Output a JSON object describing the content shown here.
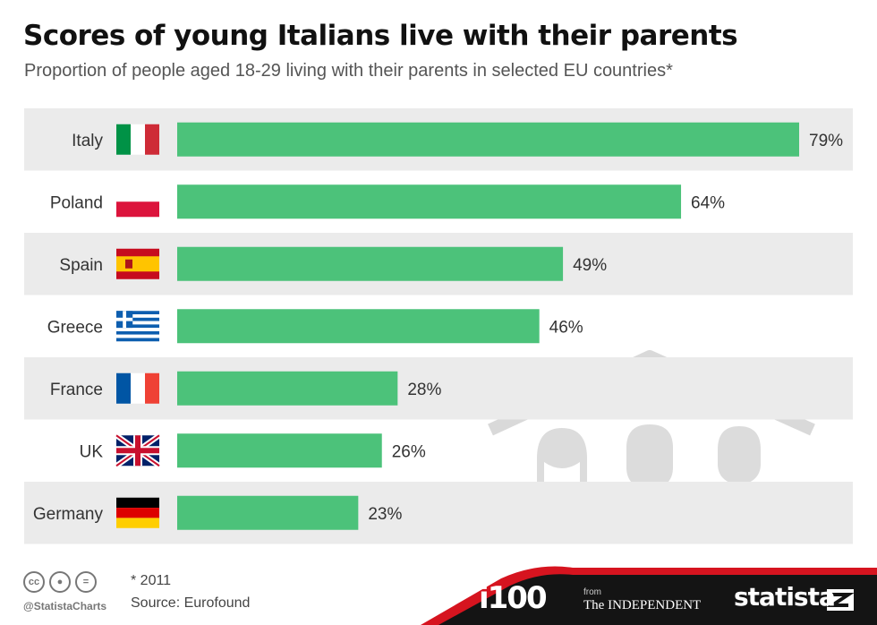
{
  "header": {
    "title": "Scores of young Italians live with their parents",
    "subtitle": "Proportion of people aged 18-29 living with their parents in selected EU countries*"
  },
  "chart_data": {
    "type": "bar",
    "orientation": "horizontal",
    "title": "Scores of young Italians live with their parents",
    "subtitle": "Proportion of people aged 18-29 living with their parents in selected EU countries*",
    "categories": [
      "Italy",
      "Poland",
      "Spain",
      "Greece",
      "France",
      "UK",
      "Germany"
    ],
    "values": [
      79,
      64,
      49,
      46,
      28,
      26,
      23
    ],
    "value_labels": [
      "79%",
      "64%",
      "49%",
      "46%",
      "28%",
      "26%",
      "23%"
    ],
    "unit": "%",
    "xlim": [
      0,
      79
    ],
    "grid": false,
    "legend": "none",
    "bar_color": "#4cc27a",
    "band_color": "#ebebeb",
    "flags": [
      "italy-flag-icon",
      "poland-flag-icon",
      "spain-flag-icon",
      "greece-flag-icon",
      "france-flag-icon",
      "uk-flag-icon",
      "germany-flag-icon"
    ]
  },
  "footer": {
    "note": "* 2011",
    "source": "Source: Eurofound",
    "handle": "@StatistaCharts",
    "brand_i100": "i100",
    "brand_from": "from",
    "brand_independent": "The INDEPENDENT",
    "brand_statista": "statista",
    "accent_red": "#d6141f",
    "dark": "#141414"
  }
}
